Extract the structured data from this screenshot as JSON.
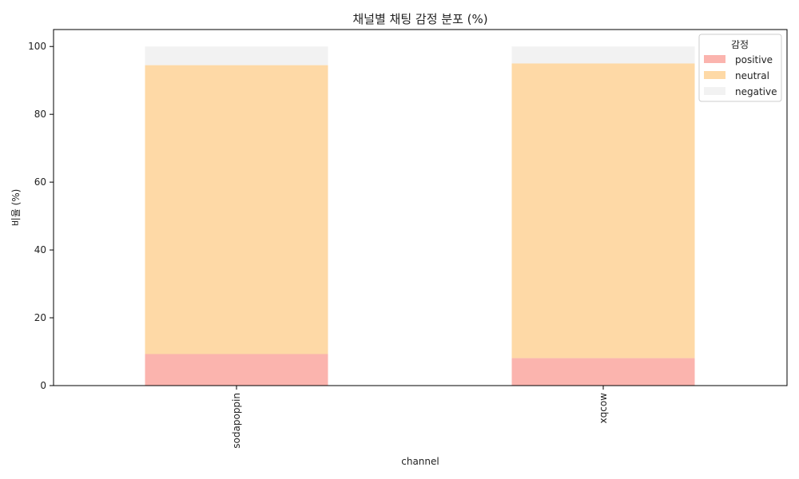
{
  "chart_data": {
    "type": "bar",
    "stacked": true,
    "title": "채널별 채팅 감정 분포 (%)",
    "xlabel": "channel",
    "ylabel": "비율 (%)",
    "categories": [
      "sodapoppin",
      "xqcow"
    ],
    "ylim": [
      0,
      105
    ],
    "yticks": [
      0,
      20,
      40,
      60,
      80,
      100
    ],
    "series": [
      {
        "name": "positive",
        "color": "#fbb4ae",
        "values": [
          9.3,
          8.1
        ]
      },
      {
        "name": "neutral",
        "color": "#fed9a6",
        "values": [
          85.2,
          86.9
        ]
      },
      {
        "name": "negative",
        "color": "#f2f2f2",
        "values": [
          5.5,
          5.0
        ]
      }
    ],
    "legend": {
      "title": "감정",
      "position": "top-right"
    },
    "grid": false
  }
}
